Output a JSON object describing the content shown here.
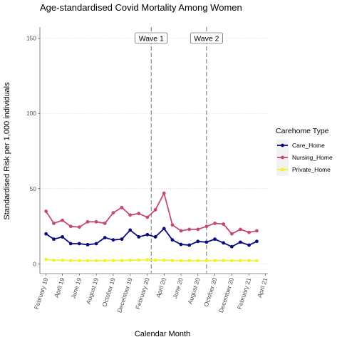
{
  "chart_data": {
    "type": "line",
    "title": "Age-standardised Covid Mortality Among Women",
    "xlabel": "Calendar Month",
    "ylabel": "Standardised Risk per 1,000 individuals",
    "ylim": [
      0,
      150
    ],
    "yticks": [
      0,
      50,
      100,
      150
    ],
    "x_dates": [
      "2019-02",
      "2019-03",
      "2019-04",
      "2019-05",
      "2019-06",
      "2019-07",
      "2019-08",
      "2019-09",
      "2019-10",
      "2019-11",
      "2019-12",
      "2020-01",
      "2020-02",
      "2020-03",
      "2020-04",
      "2020-05",
      "2020-06",
      "2020-07",
      "2020-08",
      "2020-09",
      "2020-10",
      "2020-11",
      "2020-12",
      "2021-01",
      "2021-02",
      "2021-03"
    ],
    "xlim": [
      "2019-01-10",
      "2021-04-10"
    ],
    "xticks": [
      {
        "date": "2019-02",
        "label": "February 19"
      },
      {
        "date": "2019-04",
        "label": "April 19"
      },
      {
        "date": "2019-06",
        "label": "June 19"
      },
      {
        "date": "2019-08",
        "label": "August 19"
      },
      {
        "date": "2019-10",
        "label": "October 19"
      },
      {
        "date": "2019-12",
        "label": "December 19"
      },
      {
        "date": "2020-02",
        "label": "February 20"
      },
      {
        "date": "2020-04",
        "label": "April 20"
      },
      {
        "date": "2020-06",
        "label": "June 20"
      },
      {
        "date": "2020-08",
        "label": "August 20"
      },
      {
        "date": "2020-10",
        "label": "October 20"
      },
      {
        "date": "2020-12",
        "label": "December 20"
      },
      {
        "date": "2021-02",
        "label": "February 21"
      },
      {
        "date": "2021-04",
        "label": "April 21"
      }
    ],
    "series": [
      {
        "name": "Care_Home",
        "color": "#0b0b7e",
        "values": [
          20.0,
          16.5,
          18.0,
          13.5,
          13.5,
          12.8,
          13.5,
          17.5,
          16.0,
          16.5,
          22.5,
          18.0,
          19.5,
          18.0,
          23.5,
          16.0,
          13.0,
          12.5,
          15.0,
          14.5,
          16.5,
          14.0,
          11.5,
          14.5,
          12.5,
          15.0
        ]
      },
      {
        "name": "Nursing_Home",
        "color": "#c8467a",
        "values": [
          35.0,
          27.0,
          29.0,
          25.0,
          24.5,
          28.0,
          28.0,
          27.0,
          34.0,
          37.5,
          32.5,
          33.5,
          31.0,
          36.0,
          47.0,
          26.0,
          22.0,
          23.0,
          23.0,
          25.0,
          27.0,
          26.5,
          20.0,
          23.0,
          21.0,
          22.0
        ]
      },
      {
        "name": "Private_Home",
        "color": "#f2f22e",
        "values": [
          3.0,
          2.5,
          2.5,
          2.3,
          2.3,
          2.2,
          2.2,
          2.3,
          2.3,
          2.3,
          2.5,
          2.6,
          2.8,
          2.5,
          2.5,
          2.3,
          2.2,
          2.2,
          2.2,
          2.2,
          2.3,
          2.3,
          2.2,
          2.3,
          2.3,
          2.2
        ]
      }
    ],
    "vlines": [
      {
        "date": "2020-02-15",
        "label": "Wave 1"
      },
      {
        "date": "2020-09-01",
        "label": "Wave 2"
      }
    ],
    "legend": {
      "title": "Carehome Type",
      "position": "right"
    },
    "grid": true
  }
}
